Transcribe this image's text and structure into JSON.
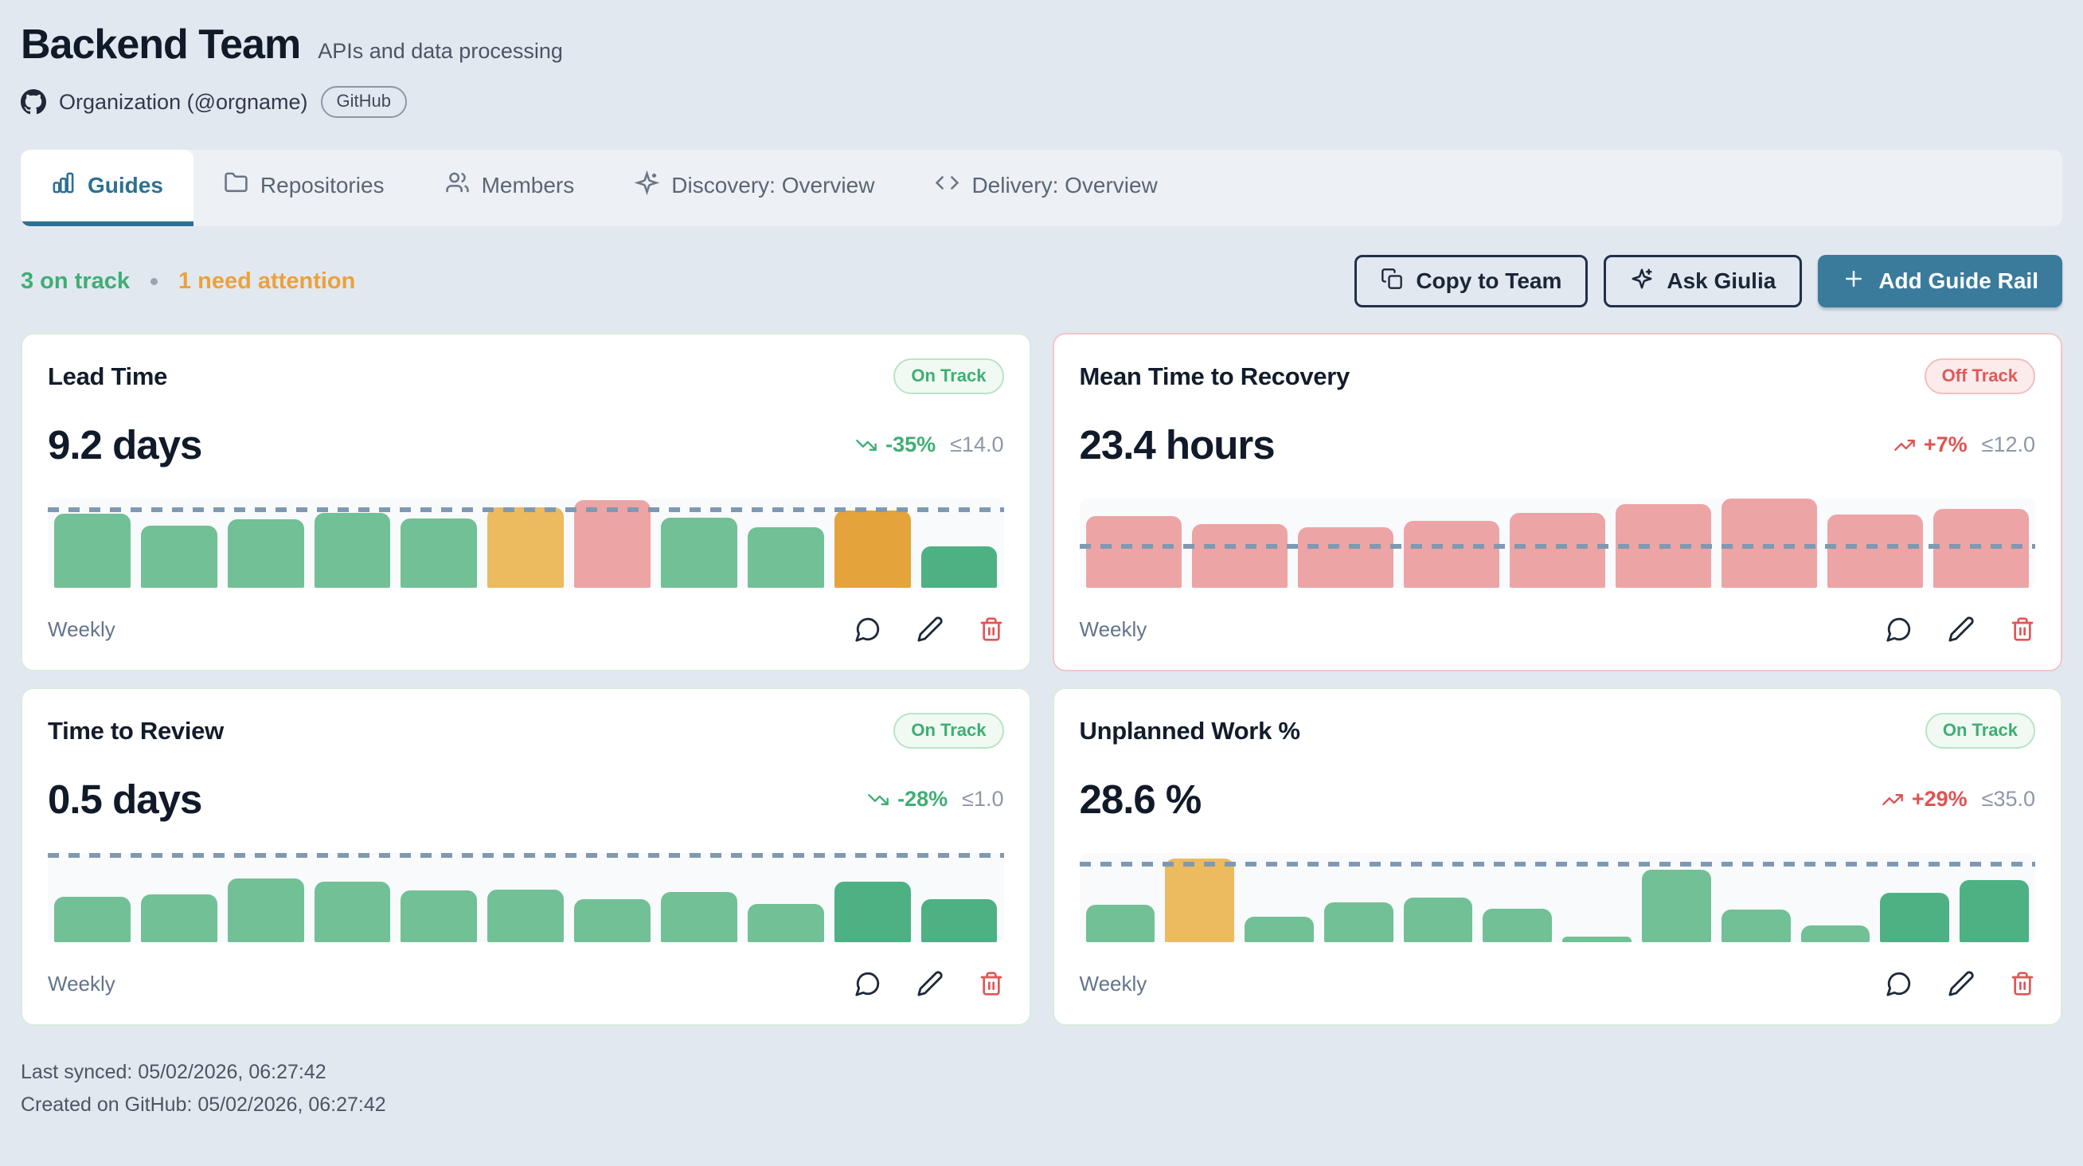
{
  "header": {
    "title": "Backend Team",
    "subtitle": "APIs and data processing",
    "org_label": "Organization (@orgname)",
    "org_badge": "GitHub"
  },
  "tabs": [
    {
      "label": "Guides",
      "icon": "bar-chart-icon",
      "active": true
    },
    {
      "label": "Repositories",
      "icon": "folder-icon",
      "active": false
    },
    {
      "label": "Members",
      "icon": "users-icon",
      "active": false
    },
    {
      "label": "Discovery: Overview",
      "icon": "sparkles-icon",
      "active": false
    },
    {
      "label": "Delivery: Overview",
      "icon": "code-icon",
      "active": false
    }
  ],
  "status_bar": {
    "on_track": "3 on track",
    "separator": "•",
    "attention": "1 need attention"
  },
  "actions": {
    "copy_to_team": "Copy to Team",
    "ask_giulia": "Ask Giulia",
    "add_guide_rail": "Add Guide Rail"
  },
  "colors": {
    "green": "#72c095",
    "green_dark": "#4db183",
    "amber": "#ecba5f",
    "orange": "#e5a33b",
    "pink": "#eda4a5",
    "threshold": "#7f99b2",
    "accent": "#2c7093",
    "primary_button": "#3a7b9c",
    "on_track": "#3fae74",
    "attention": "#eba13d",
    "off_track": "#e05252"
  },
  "cards": [
    {
      "title": "Lead Time",
      "status": "On Track",
      "value_display": "9.2 days",
      "trend": "-35%",
      "trend_direction": "down",
      "limit": "≤14.0",
      "frequency": "Weekly",
      "chart": {
        "type": "bar",
        "ymax": 16,
        "threshold": 14,
        "bars": [
          {
            "v": 13.3,
            "c": "green"
          },
          {
            "v": 11.2,
            "c": "green"
          },
          {
            "v": 12.3,
            "c": "green"
          },
          {
            "v": 13.4,
            "c": "green"
          },
          {
            "v": 12.5,
            "c": "green"
          },
          {
            "v": 14.4,
            "c": "amber"
          },
          {
            "v": 15.7,
            "c": "pink"
          },
          {
            "v": 12.6,
            "c": "green"
          },
          {
            "v": 10.9,
            "c": "green"
          },
          {
            "v": 13.9,
            "c": "orange"
          },
          {
            "v": 7.5,
            "c": "green_dark"
          }
        ]
      }
    },
    {
      "title": "Mean Time to Recovery",
      "status": "Off Track",
      "value_display": "23.4 hours",
      "trend": "+7%",
      "trend_direction": "up",
      "limit": "≤12.0",
      "frequency": "Weekly",
      "chart": {
        "type": "bar",
        "ymax": 26,
        "threshold": 12,
        "bars": [
          {
            "v": 20.8,
            "c": "pink"
          },
          {
            "v": 18.5,
            "c": "pink"
          },
          {
            "v": 17.7,
            "c": "pink"
          },
          {
            "v": 19.5,
            "c": "pink"
          },
          {
            "v": 21.8,
            "c": "pink"
          },
          {
            "v": 24.4,
            "c": "pink"
          },
          {
            "v": 26.0,
            "c": "pink"
          },
          {
            "v": 21.3,
            "c": "pink"
          },
          {
            "v": 23.1,
            "c": "pink"
          }
        ]
      }
    },
    {
      "title": "Time to Review",
      "status": "On Track",
      "value_display": "0.5 days",
      "trend": "-28%",
      "trend_direction": "down",
      "limit": "≤1.0",
      "frequency": "Weekly",
      "chart": {
        "type": "bar",
        "ymax": 1.03,
        "threshold": 1.0,
        "bars": [
          {
            "v": 0.52,
            "c": "green"
          },
          {
            "v": 0.55,
            "c": "green"
          },
          {
            "v": 0.74,
            "c": "green"
          },
          {
            "v": 0.7,
            "c": "green"
          },
          {
            "v": 0.6,
            "c": "green"
          },
          {
            "v": 0.61,
            "c": "green"
          },
          {
            "v": 0.5,
            "c": "green"
          },
          {
            "v": 0.58,
            "c": "green"
          },
          {
            "v": 0.44,
            "c": "green"
          },
          {
            "v": 0.7,
            "c": "green_dark"
          },
          {
            "v": 0.5,
            "c": "green_dark"
          }
        ]
      }
    },
    {
      "title": "Unplanned Work %",
      "status": "On Track",
      "value_display": "28.6 %",
      "trend": "+29%",
      "trend_direction": "up",
      "limit": "≤35.0",
      "frequency": "Weekly",
      "chart": {
        "type": "bar",
        "ymax": 40,
        "threshold": 35,
        "bars": [
          {
            "v": 16.8,
            "c": "green"
          },
          {
            "v": 37.5,
            "c": "amber"
          },
          {
            "v": 11.5,
            "c": "green"
          },
          {
            "v": 18.0,
            "c": "green"
          },
          {
            "v": 20.0,
            "c": "green"
          },
          {
            "v": 15.0,
            "c": "green"
          },
          {
            "v": 2.5,
            "c": "green"
          },
          {
            "v": 32.5,
            "c": "green"
          },
          {
            "v": 14.5,
            "c": "green"
          },
          {
            "v": 7.5,
            "c": "green"
          },
          {
            "v": 22.0,
            "c": "green_dark"
          },
          {
            "v": 28.0,
            "c": "green_dark"
          }
        ]
      }
    }
  ],
  "footer": {
    "last_synced": "Last synced: 05/02/2026, 06:27:42",
    "created": "Created on GitHub: 05/02/2026, 06:27:42"
  }
}
